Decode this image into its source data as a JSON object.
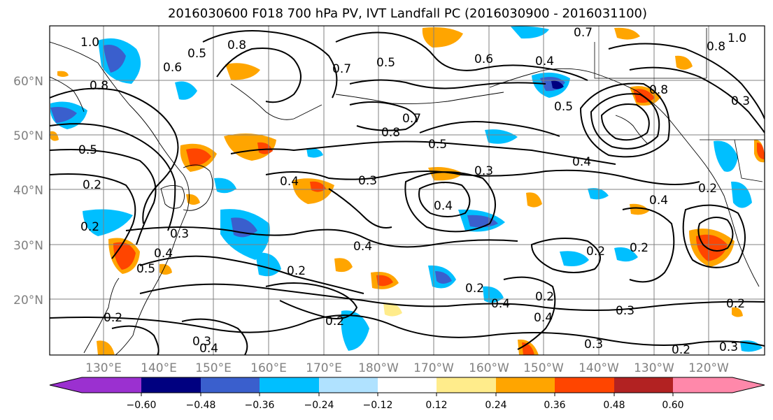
{
  "title": "2016030600 F018 700 hPa PV, IVT Landfall PC (2016030900 - 2016031100)",
  "lat_labels": [
    "60°N",
    "50°N",
    "40°N",
    "30°N",
    "20°N"
  ],
  "lon_labels": [
    "130°E",
    "140°E",
    "150°E",
    "160°E",
    "170°E",
    "180°W",
    "170°W",
    "160°W",
    "150°W",
    "140°W",
    "130°W",
    "120°W"
  ],
  "colorbar": {
    "levels": [
      "−0.60",
      "−0.48",
      "−0.36",
      "−0.24",
      "−0.12",
      "0.12",
      "0.24",
      "0.36",
      "0.48",
      "0.60"
    ],
    "colors": [
      "#9b30d0",
      "#000080",
      "#3a5fcd",
      "#00bfff",
      "#b0e2ff",
      "#ffffff",
      "#ffec8b",
      "#ffa500",
      "#ff4500",
      "#b22222",
      "#ff88aa"
    ]
  },
  "contour_labels": [
    "1.0",
    "0.5",
    "0.6",
    "0.8",
    "0.7",
    "0.5",
    "0.6",
    "0.4",
    "0.5",
    "1.0",
    "0.8",
    "0.8",
    "0.8",
    "0.7",
    "0.4",
    "0.5",
    "0.8",
    "0.7",
    "0.5",
    "0.4",
    "0.3",
    "0.4",
    "0.3",
    "0.4",
    "0.4",
    "0.3",
    "0.4",
    "0.2",
    "0.3",
    "0.4",
    "0.5",
    "0.2",
    "0.2",
    "0.2",
    "0.3",
    "0.2",
    "0.4",
    "0.3",
    "0.2",
    "0.3",
    "0.2",
    "0.3",
    "0.4",
    "0.2",
    "0.2",
    "0.2",
    "0.2",
    "0.2"
  ]
}
